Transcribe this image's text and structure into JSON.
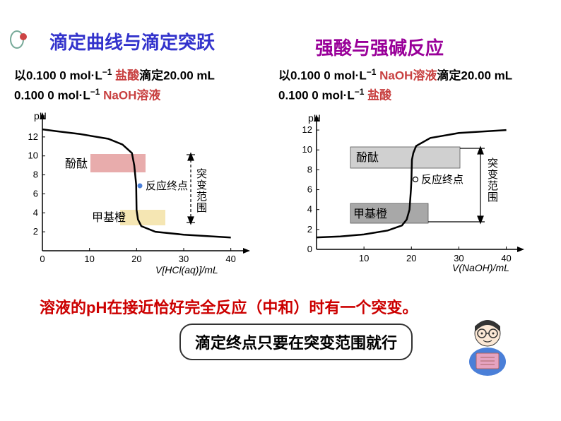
{
  "colors": {
    "title_blue": "#3333cc",
    "title_purple": "#990099",
    "text_black": "#000000",
    "text_red_highlight": "#c84040",
    "conclusion_red": "#cc0000",
    "phenol_box": "#e6a3a3",
    "methyl_box": "#f5e6b3",
    "grey_box_light": "#d0d0d0",
    "grey_box_dark": "#a8a8a8",
    "axis": "#000000",
    "curve": "#000000",
    "bg": "#ffffff",
    "teacher_body": "#4a7fd8",
    "teacher_book": "#e6a3c0"
  },
  "title_left": "滴定曲线与滴定突跃",
  "title_right": "强酸与强碱反应",
  "desc_left_line1_a": "以0.100 0 mol·L",
  "desc_left_line1_b": " 盐酸",
  "desc_left_line1_c": "滴定20.00 mL",
  "desc_left_line2_a": "0.100 0 mol·L",
  "desc_left_line2_b": " NaOH溶液",
  "desc_right_line1_a": "以0.100 0 mol·L",
  "desc_right_line1_b": " NaOH溶液",
  "desc_right_line1_c": "滴定20.00 mL",
  "desc_right_line2_a": "0.100 0 mol·L",
  "desc_right_line2_b": " 盐酸",
  "sup_minus1": "−1",
  "chart_left": {
    "ylabel": "pH",
    "yticks": [
      "2",
      "4",
      "6",
      "8",
      "10",
      "12"
    ],
    "xticks": [
      "0",
      "10",
      "20",
      "30",
      "40"
    ],
    "xlabel": "V[HCl(aq)]/mL",
    "phenol_label": "酚酞",
    "methyl_label": "甲基橙",
    "endpoint_label": "反应终点",
    "jump_label": "突变范围",
    "curve_points": [
      [
        0,
        12.8
      ],
      [
        3,
        12.6
      ],
      [
        8,
        12.3
      ],
      [
        14,
        11.8
      ],
      [
        17,
        11.2
      ],
      [
        19,
        10.3
      ],
      [
        19.5,
        9
      ],
      [
        19.9,
        7
      ],
      [
        20,
        4.3
      ],
      [
        20.3,
        3.3
      ],
      [
        21,
        2.6
      ],
      [
        24,
        2.0
      ],
      [
        30,
        1.7
      ],
      [
        40,
        1.4
      ]
    ],
    "ylim": [
      0,
      14
    ],
    "xlim": [
      0,
      42
    ]
  },
  "chart_right": {
    "ylabel": "pH",
    "yticks": [
      "0",
      "2",
      "4",
      "6",
      "8",
      "10",
      "12"
    ],
    "xticks": [
      "10",
      "20",
      "30",
      "40"
    ],
    "xlabel": "V(NaOH)/mL",
    "phenol_label": "酚酞",
    "methyl_label": "甲基橙",
    "endpoint_label": "反应终点",
    "jump_label": "突变范围",
    "curve_points": [
      [
        0,
        1.2
      ],
      [
        5,
        1.3
      ],
      [
        10,
        1.5
      ],
      [
        15,
        1.9
      ],
      [
        18,
        2.4
      ],
      [
        19,
        3.0
      ],
      [
        19.6,
        4.0
      ],
      [
        19.9,
        6.0
      ],
      [
        20,
        7.0
      ],
      [
        20.1,
        9.0
      ],
      [
        20.4,
        9.7
      ],
      [
        21,
        10.4
      ],
      [
        24,
        11.2
      ],
      [
        30,
        11.7
      ],
      [
        40,
        12.0
      ]
    ],
    "ylim": [
      0,
      13
    ],
    "xlim": [
      0,
      42
    ]
  },
  "conclusion": "溶液的pH在接近恰好完全反应（中和）时有一个突变。",
  "note": "滴定终点只要在突变范围就行"
}
